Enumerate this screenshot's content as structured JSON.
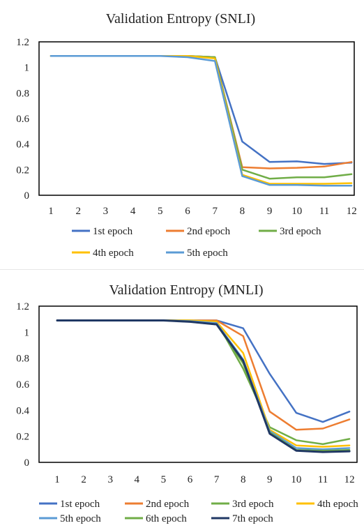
{
  "chart_data": [
    {
      "type": "line",
      "title": "Validation Entropy (SNLI)",
      "xlabel": "",
      "ylabel": "",
      "x": [
        1,
        2,
        3,
        4,
        5,
        6,
        7,
        8,
        9,
        10,
        11,
        12
      ],
      "xtick_labels": [
        "1",
        "2",
        "3",
        "4",
        "5",
        "6",
        "7",
        "8",
        "9",
        "10",
        "11",
        "12"
      ],
      "ylim": [
        0,
        1.2
      ],
      "yticks": [
        0,
        0.2,
        0.4,
        0.6,
        0.8,
        1,
        1.2
      ],
      "ytick_labels": [
        "0",
        "0.2",
        "0.4",
        "0.6",
        "0.8",
        "1",
        "1.2"
      ],
      "grid": false,
      "legend_position": "bottom",
      "series": [
        {
          "name": "1st epoch",
          "color": "#4472C4",
          "values": [
            1.09,
            1.09,
            1.09,
            1.09,
            1.09,
            1.09,
            1.08,
            0.42,
            0.26,
            0.265,
            0.245,
            0.255
          ]
        },
        {
          "name": "2nd epoch",
          "color": "#ED7D31",
          "values": [
            1.09,
            1.09,
            1.09,
            1.09,
            1.09,
            1.09,
            1.08,
            0.22,
            0.21,
            0.215,
            0.225,
            0.26
          ]
        },
        {
          "name": "3rd epoch",
          "color": "#70AD47",
          "values": [
            1.09,
            1.09,
            1.09,
            1.09,
            1.09,
            1.09,
            1.08,
            0.2,
            0.13,
            0.14,
            0.14,
            0.165
          ]
        },
        {
          "name": "4th epoch",
          "color": "#FFC000",
          "values": [
            1.09,
            1.09,
            1.09,
            1.09,
            1.09,
            1.09,
            1.07,
            0.16,
            0.09,
            0.09,
            0.09,
            0.095
          ]
        },
        {
          "name": "5th epoch",
          "color": "#5B9BD5",
          "values": [
            1.09,
            1.09,
            1.09,
            1.09,
            1.09,
            1.08,
            1.05,
            0.15,
            0.08,
            0.08,
            0.075,
            0.075
          ]
        }
      ]
    },
    {
      "type": "line",
      "title": "Validation Entropy (MNLI)",
      "xlabel": "",
      "ylabel": "",
      "x": [
        1,
        2,
        3,
        4,
        5,
        6,
        7,
        8,
        9,
        10,
        11,
        12
      ],
      "xtick_labels": [
        "1",
        "2",
        "3",
        "4",
        "5",
        "6",
        "7",
        "8",
        "9",
        "10",
        "11",
        "12"
      ],
      "ylim": [
        0,
        1.2
      ],
      "yticks": [
        0,
        0.2,
        0.4,
        0.6,
        0.8,
        1,
        1.2
      ],
      "ytick_labels": [
        "0",
        "0.2",
        "0.4",
        "0.6",
        "0.8",
        "1",
        "1.2"
      ],
      "grid": false,
      "legend_position": "bottom",
      "series": [
        {
          "name": "1st epoch",
          "color": "#4472C4",
          "values": [
            1.09,
            1.09,
            1.09,
            1.09,
            1.09,
            1.09,
            1.09,
            1.03,
            0.68,
            0.38,
            0.31,
            0.39
          ]
        },
        {
          "name": "2nd epoch",
          "color": "#ED7D31",
          "values": [
            1.09,
            1.09,
            1.09,
            1.09,
            1.09,
            1.09,
            1.09,
            0.97,
            0.39,
            0.25,
            0.26,
            0.33
          ]
        },
        {
          "name": "3rd epoch",
          "color": "#70AD47",
          "values": [
            1.09,
            1.09,
            1.09,
            1.09,
            1.09,
            1.09,
            1.08,
            0.72,
            0.27,
            0.17,
            0.14,
            0.18
          ]
        },
        {
          "name": "4th epoch",
          "color": "#FFC000",
          "values": [
            1.09,
            1.09,
            1.09,
            1.09,
            1.09,
            1.09,
            1.08,
            0.84,
            0.25,
            0.13,
            0.12,
            0.13
          ]
        },
        {
          "name": "5th epoch",
          "color": "#5B9BD5",
          "values": [
            1.09,
            1.09,
            1.09,
            1.09,
            1.09,
            1.085,
            1.07,
            0.79,
            0.24,
            0.11,
            0.1,
            0.11
          ]
        },
        {
          "name": "6th epoch",
          "color": "#70AD47",
          "values": [
            1.09,
            1.09,
            1.09,
            1.09,
            1.09,
            1.08,
            1.06,
            0.76,
            0.23,
            0.095,
            0.09,
            0.095
          ]
        },
        {
          "name": "7th epoch",
          "color": "#203864",
          "values": [
            1.09,
            1.09,
            1.09,
            1.09,
            1.09,
            1.08,
            1.06,
            0.78,
            0.22,
            0.09,
            0.08,
            0.085
          ]
        }
      ]
    }
  ]
}
